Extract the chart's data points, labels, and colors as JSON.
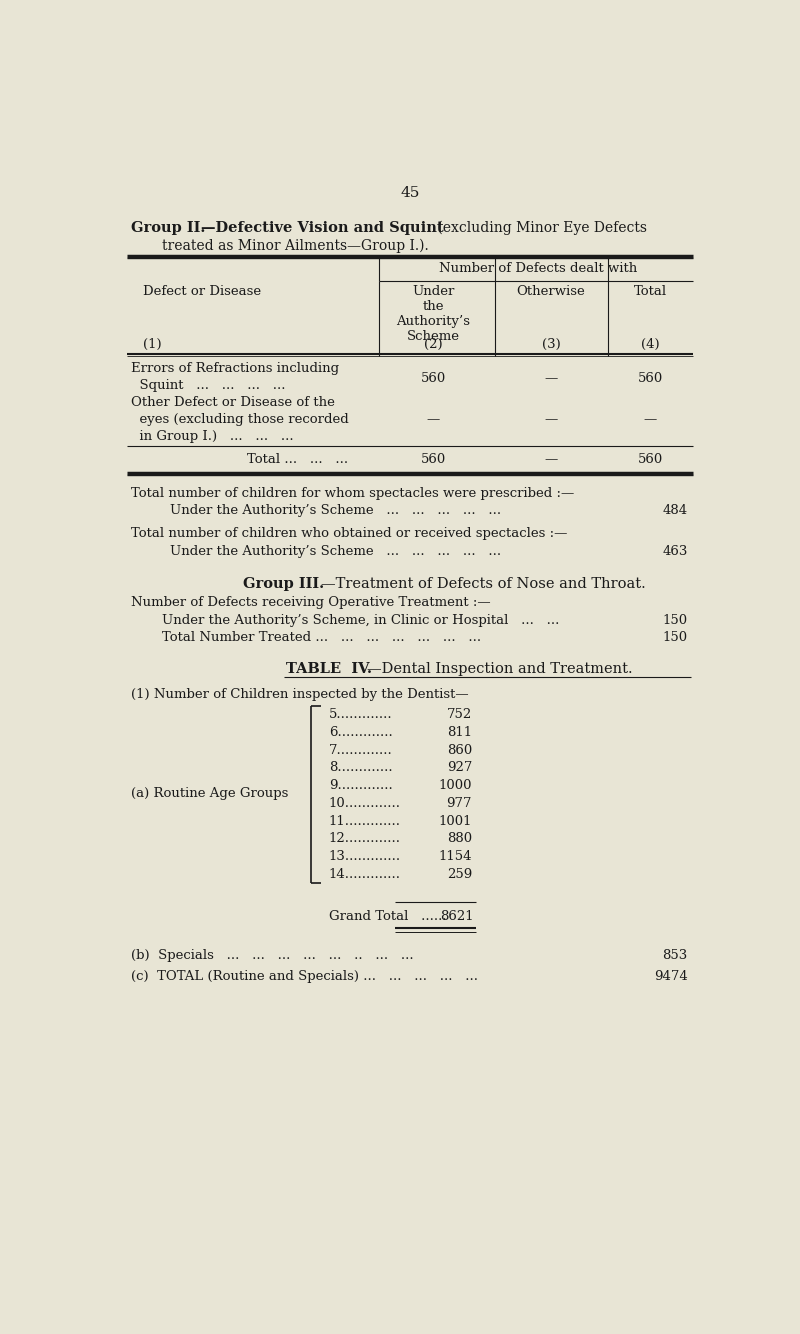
{
  "bg_color": "#e8e5d5",
  "text_color": "#1a1a1a",
  "page_number": "45",
  "routine_ages": [
    "5",
    "6",
    "7",
    "8",
    "9",
    "10",
    "11",
    "12",
    "13",
    "14"
  ],
  "routine_vals": [
    "752",
    "811",
    "860",
    "927",
    "1000",
    "977",
    "1001",
    "880",
    "1154",
    "259"
  ],
  "grand_total_val": "8621",
  "specials_val": "853",
  "total_val2": "9474"
}
